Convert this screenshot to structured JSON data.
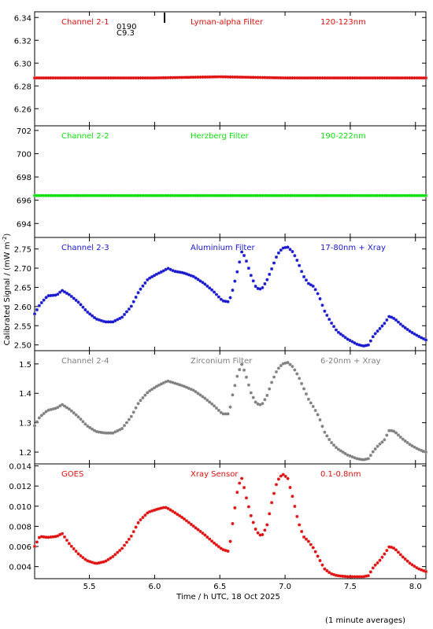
{
  "figure": {
    "xlabel": "Time / h UTC, 18 Oct 2025",
    "ylabel": "Calibrated Signal / (mW m",
    "ylabel_sup": "-2",
    "ylabel_close": ")",
    "footnote": "(1 minute averages)",
    "xlim": [
      5.08,
      8.08
    ],
    "xticks": [
      5.5,
      6.0,
      6.5,
      7.0,
      7.5,
      8.0
    ],
    "xtick_labels": [
      "5.5",
      "6.0",
      "6.5",
      "7.0",
      "7.5",
      "8.0"
    ],
    "marker_annotations": [
      "0190",
      "C9.3"
    ]
  },
  "chart_data": [
    {
      "type": "scatter",
      "panel": 1,
      "labels": [
        "Channel 2-1",
        "Lyman-alpha Filter",
        "120-123nm"
      ],
      "color": "#e01010",
      "ylim": [
        6.245,
        6.345
      ],
      "yticks": [
        6.26,
        6.28,
        6.3,
        6.32,
        6.34
      ],
      "ytick_labels": [
        "6.26",
        "6.28",
        "6.30",
        "6.32",
        "6.34"
      ],
      "series": [
        {
          "x": [
            5.08,
            5.5,
            6.0,
            6.5,
            7.0,
            7.5,
            8.08
          ],
          "y": [
            6.287,
            6.287,
            6.287,
            6.288,
            6.287,
            6.287,
            6.287
          ]
        }
      ]
    },
    {
      "type": "scatter",
      "panel": 2,
      "labels": [
        "Channel 2-2",
        "Herzberg Filter",
        "190-222nm"
      ],
      "color": "#10e010",
      "ylim": [
        692.8,
        702.4
      ],
      "yticks": [
        694,
        696,
        698,
        700,
        702
      ],
      "ytick_labels": [
        "694",
        "696",
        "698",
        "700",
        "702"
      ],
      "series": [
        {
          "x": [
            5.08,
            5.5,
            6.0,
            6.5,
            7.0,
            7.5,
            8.08
          ],
          "y": [
            696.4,
            696.4,
            696.4,
            696.4,
            696.4,
            696.4,
            696.4
          ]
        }
      ]
    },
    {
      "type": "scatter",
      "panel": 3,
      "labels": [
        "Channel 2-3",
        "Aluminium Filter",
        "17-80nm + Xray"
      ],
      "color": "#1818d0",
      "ylim": [
        2.485,
        2.78
      ],
      "yticks": [
        2.5,
        2.55,
        2.6,
        2.65,
        2.7,
        2.75
      ],
      "ytick_labels": [
        "2.50",
        "2.55",
        "2.60",
        "2.65",
        "2.70",
        "2.75"
      ],
      "series": [
        {
          "x": [
            5.08,
            5.12,
            5.18,
            5.25,
            5.29,
            5.35,
            5.42,
            5.48,
            5.55,
            5.62,
            5.68,
            5.75,
            5.82,
            5.88,
            5.95,
            6.02,
            6.08,
            6.1,
            6.15,
            6.22,
            6.3,
            6.38,
            6.45,
            6.52,
            6.57,
            6.6,
            6.64,
            6.67,
            6.7,
            6.74,
            6.78,
            6.82,
            6.86,
            6.9,
            6.94,
            6.98,
            7.02,
            7.06,
            7.1,
            7.14,
            7.18,
            7.22,
            7.26,
            7.3,
            7.35,
            7.4,
            7.48,
            7.55,
            7.6,
            7.64,
            7.68,
            7.72,
            7.76,
            7.8,
            7.84,
            7.9,
            7.96,
            8.02,
            8.08
          ],
          "y": [
            2.581,
            2.605,
            2.628,
            2.63,
            2.642,
            2.63,
            2.61,
            2.587,
            2.568,
            2.56,
            2.56,
            2.572,
            2.6,
            2.64,
            2.672,
            2.685,
            2.695,
            2.7,
            2.692,
            2.688,
            2.678,
            2.66,
            2.64,
            2.615,
            2.612,
            2.645,
            2.7,
            2.745,
            2.722,
            2.68,
            2.648,
            2.645,
            2.668,
            2.7,
            2.735,
            2.752,
            2.755,
            2.742,
            2.715,
            2.68,
            2.66,
            2.652,
            2.628,
            2.59,
            2.56,
            2.535,
            2.515,
            2.502,
            2.497,
            2.5,
            2.525,
            2.54,
            2.555,
            2.575,
            2.568,
            2.55,
            2.535,
            2.523,
            2.513
          ]
        }
      ]
    },
    {
      "type": "scatter",
      "panel": 4,
      "labels": [
        "Channel 2-4",
        "Zirconium Filter",
        "6-20nm + Xray"
      ],
      "color": "#808080",
      "ylim": [
        1.16,
        1.545
      ],
      "yticks": [
        1.2,
        1.3,
        1.4,
        1.5
      ],
      "ytick_labels": [
        "1.2",
        "1.3",
        "1.4",
        "1.5"
      ],
      "series": [
        {
          "x": [
            5.08,
            5.12,
            5.18,
            5.25,
            5.29,
            5.35,
            5.42,
            5.48,
            5.55,
            5.62,
            5.68,
            5.75,
            5.82,
            5.88,
            5.95,
            6.02,
            6.08,
            6.1,
            6.15,
            6.22,
            6.3,
            6.38,
            6.45,
            6.52,
            6.57,
            6.6,
            6.64,
            6.67,
            6.7,
            6.74,
            6.78,
            6.82,
            6.86,
            6.9,
            6.94,
            6.98,
            7.02,
            7.06,
            7.1,
            7.14,
            7.18,
            7.22,
            7.26,
            7.3,
            7.35,
            7.4,
            7.48,
            7.55,
            7.6,
            7.64,
            7.68,
            7.72,
            7.76,
            7.8,
            7.84,
            7.9,
            7.96,
            8.02,
            8.08
          ],
          "y": [
            1.29,
            1.32,
            1.342,
            1.35,
            1.362,
            1.345,
            1.318,
            1.29,
            1.27,
            1.265,
            1.265,
            1.28,
            1.32,
            1.37,
            1.405,
            1.425,
            1.438,
            1.442,
            1.435,
            1.425,
            1.41,
            1.385,
            1.36,
            1.33,
            1.33,
            1.4,
            1.47,
            1.5,
            1.46,
            1.4,
            1.365,
            1.36,
            1.39,
            1.44,
            1.48,
            1.5,
            1.505,
            1.49,
            1.46,
            1.42,
            1.38,
            1.352,
            1.32,
            1.27,
            1.235,
            1.212,
            1.19,
            1.178,
            1.174,
            1.178,
            1.205,
            1.225,
            1.24,
            1.275,
            1.27,
            1.245,
            1.225,
            1.21,
            1.2
          ]
        }
      ]
    },
    {
      "type": "scatter",
      "panel": 5,
      "labels": [
        "GOES",
        "Xray Sensor",
        "0.1-0.8nm"
      ],
      "color": "#e01010",
      "ylim": [
        0.0028,
        0.0142
      ],
      "yticks": [
        0.004,
        0.006,
        0.008,
        0.01,
        0.012,
        0.014
      ],
      "ytick_labels": [
        "0.004",
        "0.006",
        "0.008",
        "0.010",
        "0.012",
        "0.014"
      ],
      "series": [
        {
          "x": [
            5.08,
            5.12,
            5.18,
            5.25,
            5.29,
            5.35,
            5.42,
            5.48,
            5.55,
            5.62,
            5.68,
            5.75,
            5.82,
            5.88,
            5.95,
            6.02,
            6.08,
            6.1,
            6.15,
            6.22,
            6.3,
            6.38,
            6.45,
            6.52,
            6.57,
            6.6,
            6.64,
            6.67,
            6.7,
            6.74,
            6.78,
            6.82,
            6.86,
            6.9,
            6.94,
            6.98,
            7.02,
            7.06,
            7.1,
            7.14,
            7.18,
            7.22,
            7.26,
            7.3,
            7.35,
            7.4,
            7.48,
            7.55,
            7.6,
            7.64,
            7.68,
            7.72,
            7.76,
            7.8,
            7.84,
            7.9,
            7.96,
            8.02,
            8.08
          ],
          "y": [
            0.006,
            0.007,
            0.0069,
            0.007,
            0.0073,
            0.0062,
            0.0052,
            0.0046,
            0.0043,
            0.0045,
            0.005,
            0.0058,
            0.007,
            0.0085,
            0.0094,
            0.0097,
            0.0099,
            0.0098,
            0.0094,
            0.0088,
            0.008,
            0.0072,
            0.0064,
            0.0057,
            0.0055,
            0.0085,
            0.012,
            0.0128,
            0.011,
            0.009,
            0.0075,
            0.007,
            0.008,
            0.0105,
            0.0125,
            0.0132,
            0.0128,
            0.0108,
            0.0085,
            0.007,
            0.0065,
            0.0058,
            0.0048,
            0.0038,
            0.0033,
            0.0031,
            0.003,
            0.003,
            0.003,
            0.0031,
            0.004,
            0.0045,
            0.0052,
            0.006,
            0.0058,
            0.005,
            0.0043,
            0.0038,
            0.0035
          ]
        }
      ]
    }
  ]
}
